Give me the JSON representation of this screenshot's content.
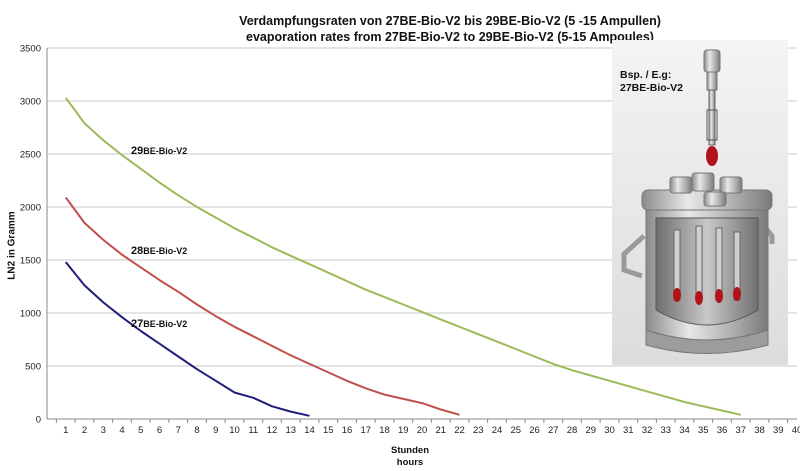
{
  "chart_data": {
    "type": "line",
    "title": "Verdampfungsraten von 27BE-Bio-V2 bis 29BE-Bio-V2  (5 -15  Ampullen)",
    "subtitle": "evaporation rates from 27BE-Bio-V2 to 29BE-Bio-V2 (5-15 Ampoules)",
    "ylabel": "LN2 in Gramm",
    "xlabel": "Stunden",
    "xlabel2": "hours",
    "xlim": [
      0,
      40
    ],
    "ylim": [
      0,
      3500
    ],
    "yticks": [
      0,
      500,
      1000,
      1500,
      2000,
      2500,
      3000,
      3500
    ],
    "xticks": [
      1,
      2,
      3,
      4,
      5,
      6,
      7,
      8,
      9,
      10,
      11,
      12,
      13,
      14,
      15,
      16,
      17,
      18,
      19,
      20,
      21,
      22,
      23,
      24,
      25,
      26,
      27,
      28,
      29,
      30,
      31,
      32,
      33,
      34,
      35,
      36,
      37,
      38,
      39,
      40
    ],
    "grid": "horizontal",
    "series": [
      {
        "name": "27BE-Bio-V2",
        "label_main": "27",
        "label_sub": "BE-Bio-V2",
        "color": "#1f1f7a",
        "x": [
          1,
          2,
          3,
          4,
          5,
          6,
          7,
          8,
          9,
          10,
          11,
          12,
          13,
          14
        ],
        "values": [
          1480,
          1260,
          1100,
          960,
          830,
          710,
          590,
          470,
          360,
          250,
          200,
          120,
          70,
          30
        ]
      },
      {
        "name": "28BE-Bio-V2",
        "label_main": "28",
        "label_sub": "BE-Bio-V2",
        "color": "#c0504d",
        "x": [
          1,
          2,
          3,
          4,
          5,
          6,
          7,
          8,
          9,
          10,
          11,
          12,
          13,
          14,
          15,
          16,
          17,
          18,
          19,
          20,
          21,
          22
        ],
        "values": [
          2090,
          1850,
          1690,
          1550,
          1430,
          1310,
          1200,
          1080,
          970,
          870,
          780,
          690,
          600,
          520,
          440,
          360,
          290,
          230,
          190,
          150,
          90,
          40
        ]
      },
      {
        "name": "29BE-Bio-V2",
        "label_main": "29",
        "label_sub": "BE-Bio-V2",
        "color": "#9bbb59",
        "x": [
          1,
          2,
          3,
          4,
          5,
          6,
          7,
          8,
          9,
          10,
          11,
          12,
          13,
          14,
          15,
          16,
          17,
          18,
          19,
          20,
          21,
          22,
          23,
          24,
          25,
          26,
          27,
          28,
          29,
          30,
          31,
          32,
          33,
          34,
          35,
          36,
          37
        ],
        "values": [
          3030,
          2790,
          2630,
          2490,
          2360,
          2230,
          2110,
          2000,
          1900,
          1800,
          1710,
          1620,
          1540,
          1460,
          1380,
          1300,
          1220,
          1150,
          1080,
          1010,
          940,
          870,
          800,
          730,
          660,
          590,
          520,
          460,
          410,
          360,
          310,
          260,
          210,
          160,
          120,
          80,
          40
        ]
      }
    ]
  },
  "inset": {
    "label_line1": "Bsp. / E.g:",
    "label_line2": "27BE-Bio-V2"
  }
}
